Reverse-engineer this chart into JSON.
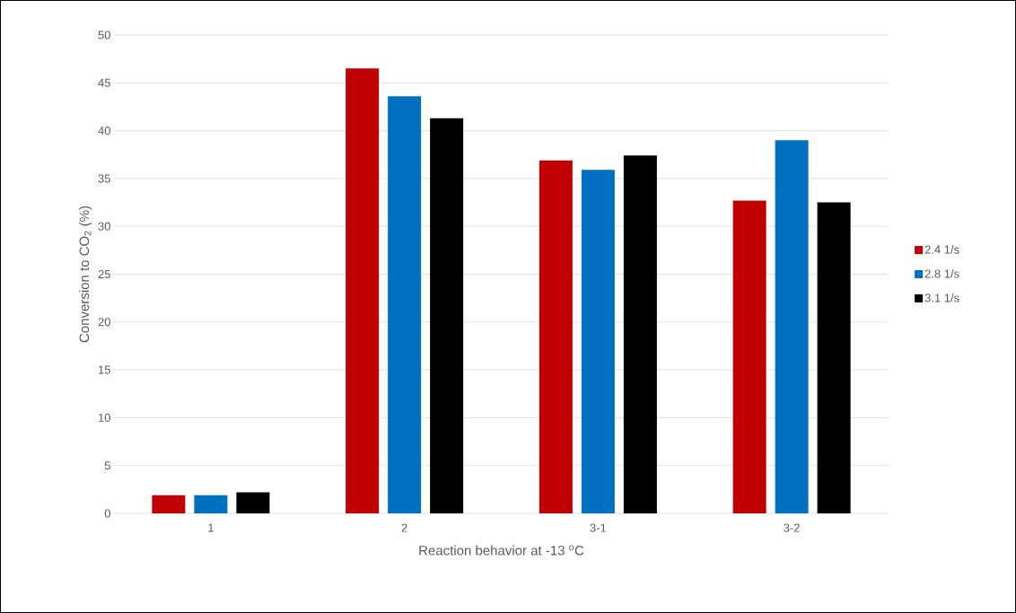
{
  "chart_data": {
    "type": "bar",
    "xlabel": "Reaction behavior at -13 $^{o}$C",
    "ylabel": "Conversion to CO$_{2}$ (%)",
    "categories": [
      "1",
      "2",
      "3-1",
      "3-2"
    ],
    "series": [
      {
        "name": "2.4 1/s",
        "color": "#c00000",
        "values": [
          1.9,
          46.5,
          36.9,
          32.7
        ]
      },
      {
        "name": "2.8 1/s",
        "color": "#0070c0",
        "values": [
          1.9,
          43.6,
          35.9,
          39.0
        ]
      },
      {
        "name": "3.1 1/s",
        "color": "#000000",
        "values": [
          2.2,
          41.3,
          37.4,
          32.5
        ]
      }
    ],
    "ylim": [
      0,
      50
    ],
    "yticks": [
      0,
      5,
      10,
      15,
      20,
      25,
      30,
      35,
      40,
      45,
      50
    ],
    "grid": "y",
    "legend": "right"
  }
}
